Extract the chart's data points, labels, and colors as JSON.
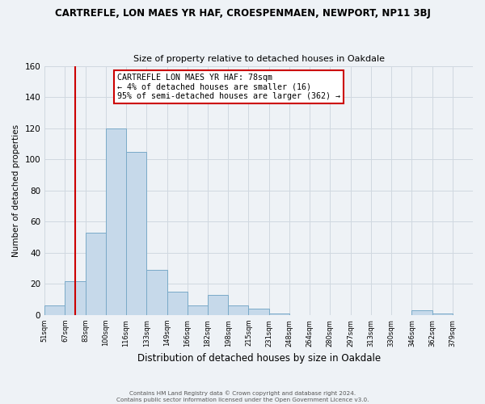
{
  "title": "CARTREFLE, LON MAES YR HAF, CROESPENMAEN, NEWPORT, NP11 3BJ",
  "subtitle": "Size of property relative to detached houses in Oakdale",
  "xlabel": "Distribution of detached houses by size in Oakdale",
  "ylabel": "Number of detached properties",
  "bin_labels": [
    "51sqm",
    "67sqm",
    "83sqm",
    "100sqm",
    "116sqm",
    "133sqm",
    "149sqm",
    "166sqm",
    "182sqm",
    "198sqm",
    "215sqm",
    "231sqm",
    "248sqm",
    "264sqm",
    "280sqm",
    "297sqm",
    "313sqm",
    "330sqm",
    "346sqm",
    "362sqm",
    "379sqm"
  ],
  "bar_heights": [
    6,
    22,
    53,
    120,
    105,
    29,
    15,
    6,
    13,
    6,
    4,
    1,
    0,
    0,
    0,
    0,
    0,
    0,
    3,
    1,
    0
  ],
  "bar_color": "#c6d9ea",
  "bar_edge_color": "#7aaac8",
  "grid_color": "#d0d8e0",
  "background_color": "#eef2f6",
  "vline_bin": 1.5,
  "vline_color": "#cc0000",
  "annotation_text": "CARTREFLE LON MAES YR HAF: 78sqm\n← 4% of detached houses are smaller (16)\n95% of semi-detached houses are larger (362) →",
  "annotation_box_color": "#ffffff",
  "annotation_border_color": "#cc0000",
  "ylim": [
    0,
    160
  ],
  "yticks": [
    0,
    20,
    40,
    60,
    80,
    100,
    120,
    140,
    160
  ],
  "footer_line1": "Contains HM Land Registry data © Crown copyright and database right 2024.",
  "footer_line2": "Contains public sector information licensed under the Open Government Licence v3.0."
}
